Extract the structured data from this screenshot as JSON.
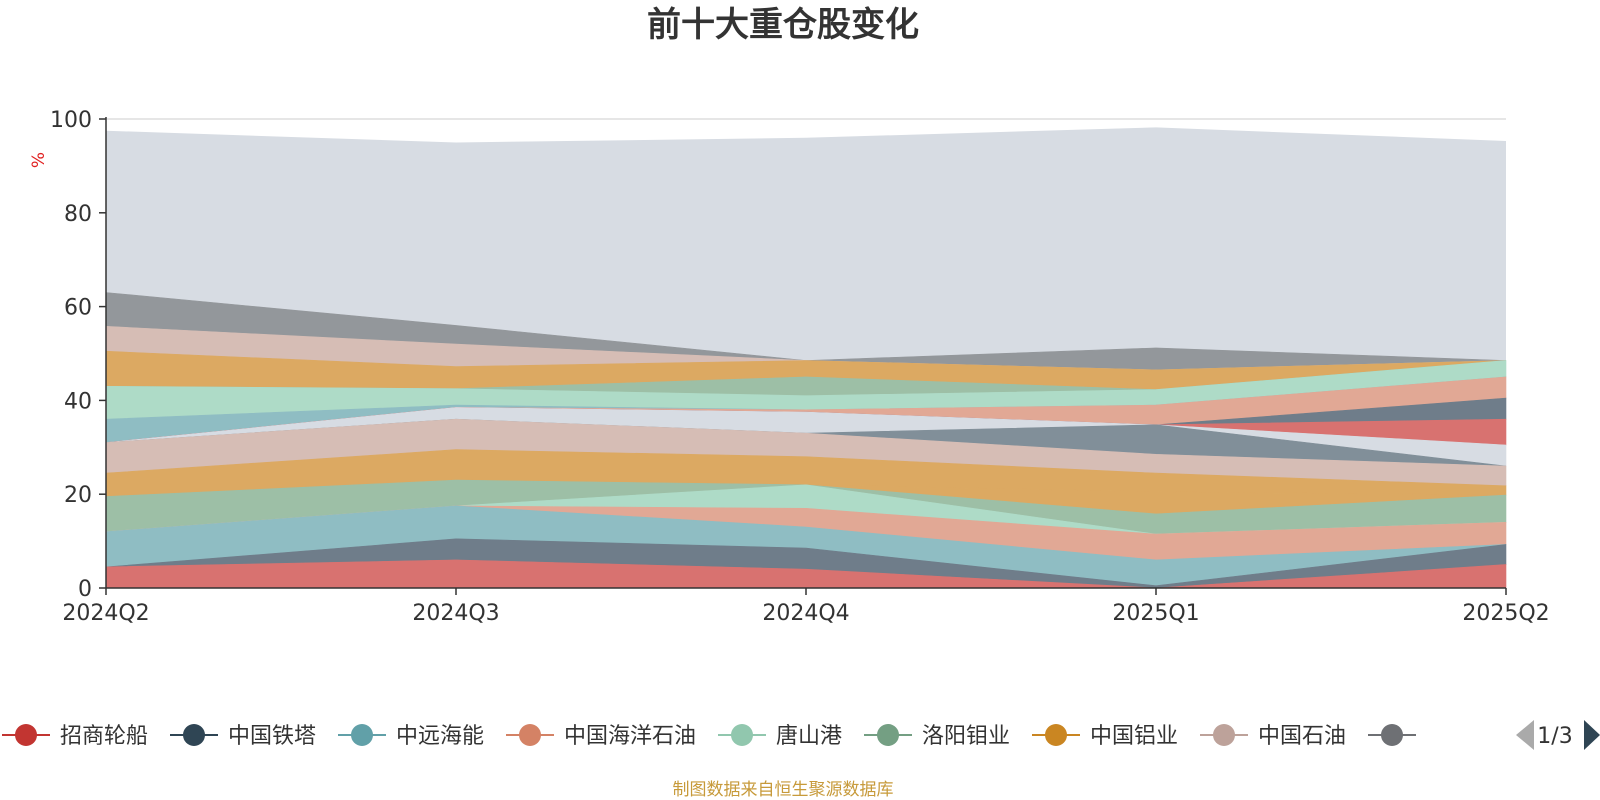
{
  "chart_data": {
    "type": "area",
    "title": "前十大重仓股变化",
    "ylabel": "%",
    "xlabel": "",
    "ylim": [
      0,
      100
    ],
    "yticks": [
      0,
      20,
      40,
      60,
      80,
      100
    ],
    "categories": [
      "2024Q2",
      "2024Q3",
      "2024Q4",
      "2025Q1",
      "2025Q2"
    ],
    "total_band": {
      "top": [
        97.5,
        95.0,
        96.0,
        98.2,
        95.3
      ],
      "bottom": [
        63.0,
        56.0,
        48.5,
        51.2,
        48.5
      ],
      "color": "#d7dce3"
    },
    "bands": [
      {
        "bottom": [
          55.8,
          52.0,
          48.5,
          46.5,
          48.5
        ],
        "top": [
          63.0,
          56.0,
          48.5,
          51.2,
          48.5
        ],
        "color": "#93979b"
      },
      {
        "bottom": [
          50.5,
          47.2,
          48.5,
          46.5,
          48.5
        ],
        "top": [
          55.8,
          52.0,
          48.5,
          46.5,
          48.5
        ],
        "color": "#d6bdb5"
      },
      {
        "bottom": [
          43.0,
          42.5,
          45.0,
          42.3,
          48.5
        ],
        "top": [
          50.5,
          47.2,
          48.5,
          46.5,
          48.5
        ],
        "color": "#dca962"
      },
      {
        "bottom": [
          43.0,
          42.5,
          41.0,
          42.3,
          48.5
        ],
        "top": [
          43.0,
          42.5,
          45.0,
          42.3,
          48.5
        ],
        "color": "#9dbfa6"
      },
      {
        "bottom": [
          36.0,
          39.0,
          38.0,
          39.0,
          45.0
        ],
        "top": [
          43.0,
          42.5,
          41.0,
          42.3,
          48.5
        ],
        "color": "#aedbc7"
      },
      {
        "bottom": [
          31.0,
          38.5,
          38.0,
          39.0,
          45.0
        ],
        "top": [
          36.0,
          39.0,
          38.0,
          39.0,
          45.0
        ],
        "color": "#8fbdc3"
      },
      {
        "bottom": [
          31.0,
          38.5,
          37.5,
          34.8,
          40.5
        ],
        "top": [
          31.0,
          38.5,
          38.0,
          39.0,
          45.0
        ],
        "color": "#e1a895"
      },
      {
        "bottom": [
          31.0,
          38.5,
          37.5,
          34.8,
          36.0
        ],
        "top": [
          31.0,
          38.5,
          37.5,
          34.8,
          40.5
        ],
        "color": "#6f7d8a"
      },
      {
        "bottom": [
          31.0,
          38.5,
          37.5,
          34.8,
          30.5
        ],
        "top": [
          31.0,
          38.5,
          37.5,
          34.8,
          36.0
        ],
        "color": "#d87270"
      },
      {
        "bottom": [
          31.0,
          36.0,
          33.0,
          34.8,
          26.0
        ],
        "top": [
          31.0,
          38.5,
          37.5,
          34.8,
          30.5
        ],
        "color": "#d7dce3"
      },
      {
        "bottom": [
          31.0,
          36.0,
          33.0,
          28.5,
          26.0
        ],
        "top": [
          31.0,
          36.0,
          33.0,
          34.8,
          26.0
        ],
        "color": "#818f99"
      },
      {
        "bottom": [
          24.5,
          29.5,
          28.0,
          24.5,
          21.8
        ],
        "top": [
          31.0,
          36.0,
          33.0,
          28.5,
          26.0
        ],
        "color": "#d6bdb5"
      },
      {
        "bottom": [
          19.5,
          23.0,
          22.0,
          20.5,
          19.8
        ],
        "top": [
          24.5,
          29.5,
          28.0,
          24.5,
          21.8
        ],
        "color": "#dca962"
      },
      {
        "bottom": [
          19.5,
          23.0,
          22.0,
          15.8,
          19.8
        ],
        "top": [
          19.5,
          23.0,
          22.0,
          20.5,
          19.8
        ],
        "color": "#dca962"
      },
      {
        "bottom": [
          12.0,
          17.5,
          22.0,
          11.5,
          14.0
        ],
        "top": [
          19.5,
          23.0,
          22.0,
          15.8,
          19.8
        ],
        "color": "#9dbfa6"
      },
      {
        "bottom": [
          12.0,
          17.5,
          17.0,
          11.5,
          14.0
        ],
        "top": [
          12.0,
          17.5,
          22.0,
          11.5,
          14.0
        ],
        "color": "#aedbc7"
      },
      {
        "bottom": [
          12.0,
          17.5,
          13.0,
          6.0,
          9.3
        ],
        "top": [
          12.0,
          17.5,
          17.0,
          11.5,
          14.0
        ],
        "color": "#e1a895"
      },
      {
        "bottom": [
          4.5,
          10.5,
          8.5,
          0.5,
          9.3
        ],
        "top": [
          12.0,
          17.5,
          13.0,
          6.0,
          9.3
        ],
        "color": "#8fbdc3"
      },
      {
        "bottom": [
          4.5,
          6.0,
          4.0,
          0.0,
          5.0
        ],
        "top": [
          4.5,
          10.5,
          8.5,
          0.5,
          9.3
        ],
        "color": "#6f7d8a"
      },
      {
        "bottom": [
          0,
          0,
          0,
          0,
          0
        ],
        "top": [
          4.5,
          6.0,
          4.0,
          0.0,
          5.0
        ],
        "color": "#d87270"
      }
    ],
    "legend": {
      "items": [
        {
          "name": "招商轮船",
          "color": "#c23531"
        },
        {
          "name": "中国铁塔",
          "color": "#2f4554"
        },
        {
          "name": "中远海能",
          "color": "#61a0a8"
        },
        {
          "name": "中国海洋石油",
          "color": "#d48265"
        },
        {
          "name": "唐山港",
          "color": "#91c7ae"
        },
        {
          "name": "洛阳钼业",
          "color": "#749f83"
        },
        {
          "name": "中国铝业",
          "color": "#ca8622"
        },
        {
          "name": "中国石油",
          "color": "#bda29a"
        },
        {
          "name": "",
          "color": "#6e7074"
        }
      ],
      "page_text": "1/3"
    },
    "source": "制图数据来自恒生聚源数据库",
    "source_color": "#c79a3a",
    "ylabel_color": "#e02020"
  }
}
